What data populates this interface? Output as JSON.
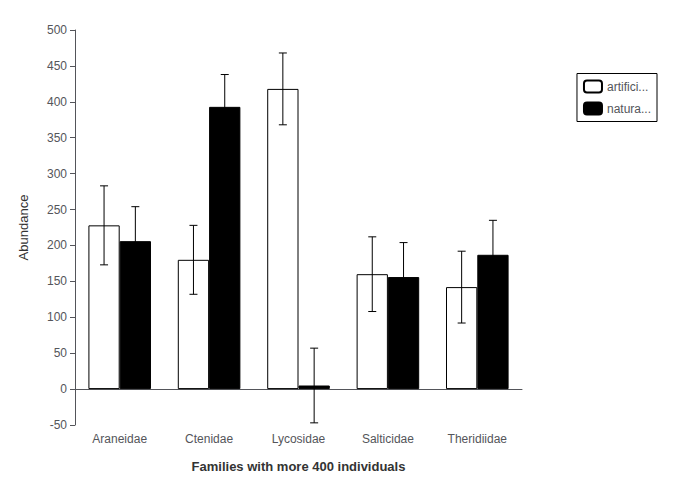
{
  "chart_data": {
    "type": "bar",
    "xlabel": "Families with more 400 individuals",
    "ylabel": "Abundance",
    "categories": [
      "Araneidae",
      "Ctenidae",
      "Lycosidae",
      "Salticidae",
      "Theridiidae"
    ],
    "series": [
      {
        "name": "artifici...",
        "color": "white",
        "values": [
          228,
          180,
          418,
          160,
          142
        ],
        "errors": [
          55,
          48,
          50,
          52,
          50
        ]
      },
      {
        "name": "natura...",
        "color": "black",
        "values": [
          206,
          393,
          5,
          156,
          187
        ],
        "errors": [
          48,
          45,
          52,
          48,
          48
        ]
      }
    ],
    "ylim": [
      -50,
      500
    ],
    "yticks": [
      -50,
      0,
      50,
      100,
      150,
      200,
      250,
      300,
      350,
      400,
      450,
      500
    ],
    "grid": false,
    "legend": "right"
  }
}
